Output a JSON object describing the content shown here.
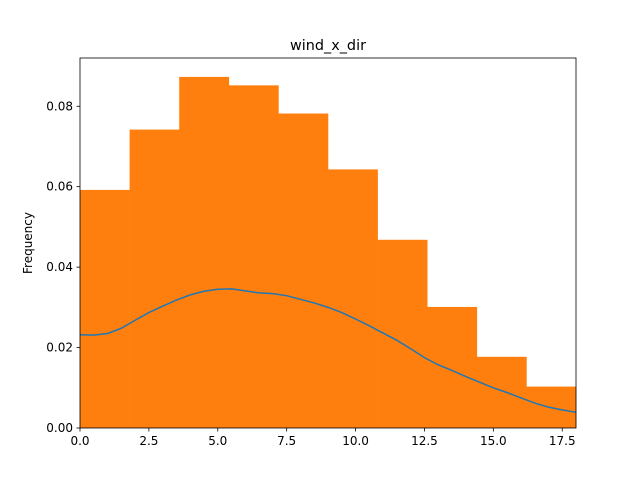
{
  "chart_data": {
    "type": "bar",
    "title": "wind_x_dir",
    "xlabel": "",
    "ylabel": "Frequency",
    "xlim": [
      0.0,
      18.0
    ],
    "ylim": [
      0.0,
      0.092
    ],
    "xticks": [
      "0.0",
      "2.5",
      "5.0",
      "7.5",
      "10.0",
      "12.5",
      "15.0",
      "17.5"
    ],
    "yticks": [
      "0.00",
      "0.02",
      "0.04",
      "0.06",
      "0.08"
    ],
    "histogram": {
      "bin_edges": [
        0.0,
        1.8,
        3.6,
        5.4,
        7.2,
        9.0,
        10.8,
        12.6,
        14.4,
        16.2,
        18.0
      ],
      "values": [
        0.0592,
        0.0742,
        0.0873,
        0.0852,
        0.0782,
        0.0643,
        0.0468,
        0.0301,
        0.0177,
        0.0103
      ],
      "color": "#ff7f0e"
    },
    "density_line": {
      "x": [
        0.0,
        0.5,
        1.0,
        1.5,
        2.0,
        2.5,
        3.0,
        3.5,
        4.0,
        4.5,
        5.0,
        5.5,
        6.0,
        6.5,
        7.0,
        7.5,
        8.0,
        8.5,
        9.0,
        9.5,
        10.0,
        10.5,
        11.0,
        11.5,
        12.0,
        12.5,
        13.0,
        13.5,
        14.0,
        14.5,
        15.0,
        15.5,
        16.0,
        16.5,
        17.0,
        17.5,
        18.0
      ],
      "y": [
        0.0232,
        0.0231,
        0.0235,
        0.0248,
        0.0268,
        0.0287,
        0.0303,
        0.0318,
        0.0331,
        0.034,
        0.0345,
        0.0346,
        0.0341,
        0.0336,
        0.0334,
        0.0329,
        0.032,
        0.0311,
        0.03,
        0.0287,
        0.0271,
        0.0254,
        0.0236,
        0.0218,
        0.0197,
        0.0175,
        0.0157,
        0.0143,
        0.0128,
        0.0114,
        0.01,
        0.0088,
        0.0075,
        0.0062,
        0.0052,
        0.0045,
        0.0039
      ],
      "color": "#1f77b4"
    },
    "grid": false,
    "legend": "none"
  }
}
